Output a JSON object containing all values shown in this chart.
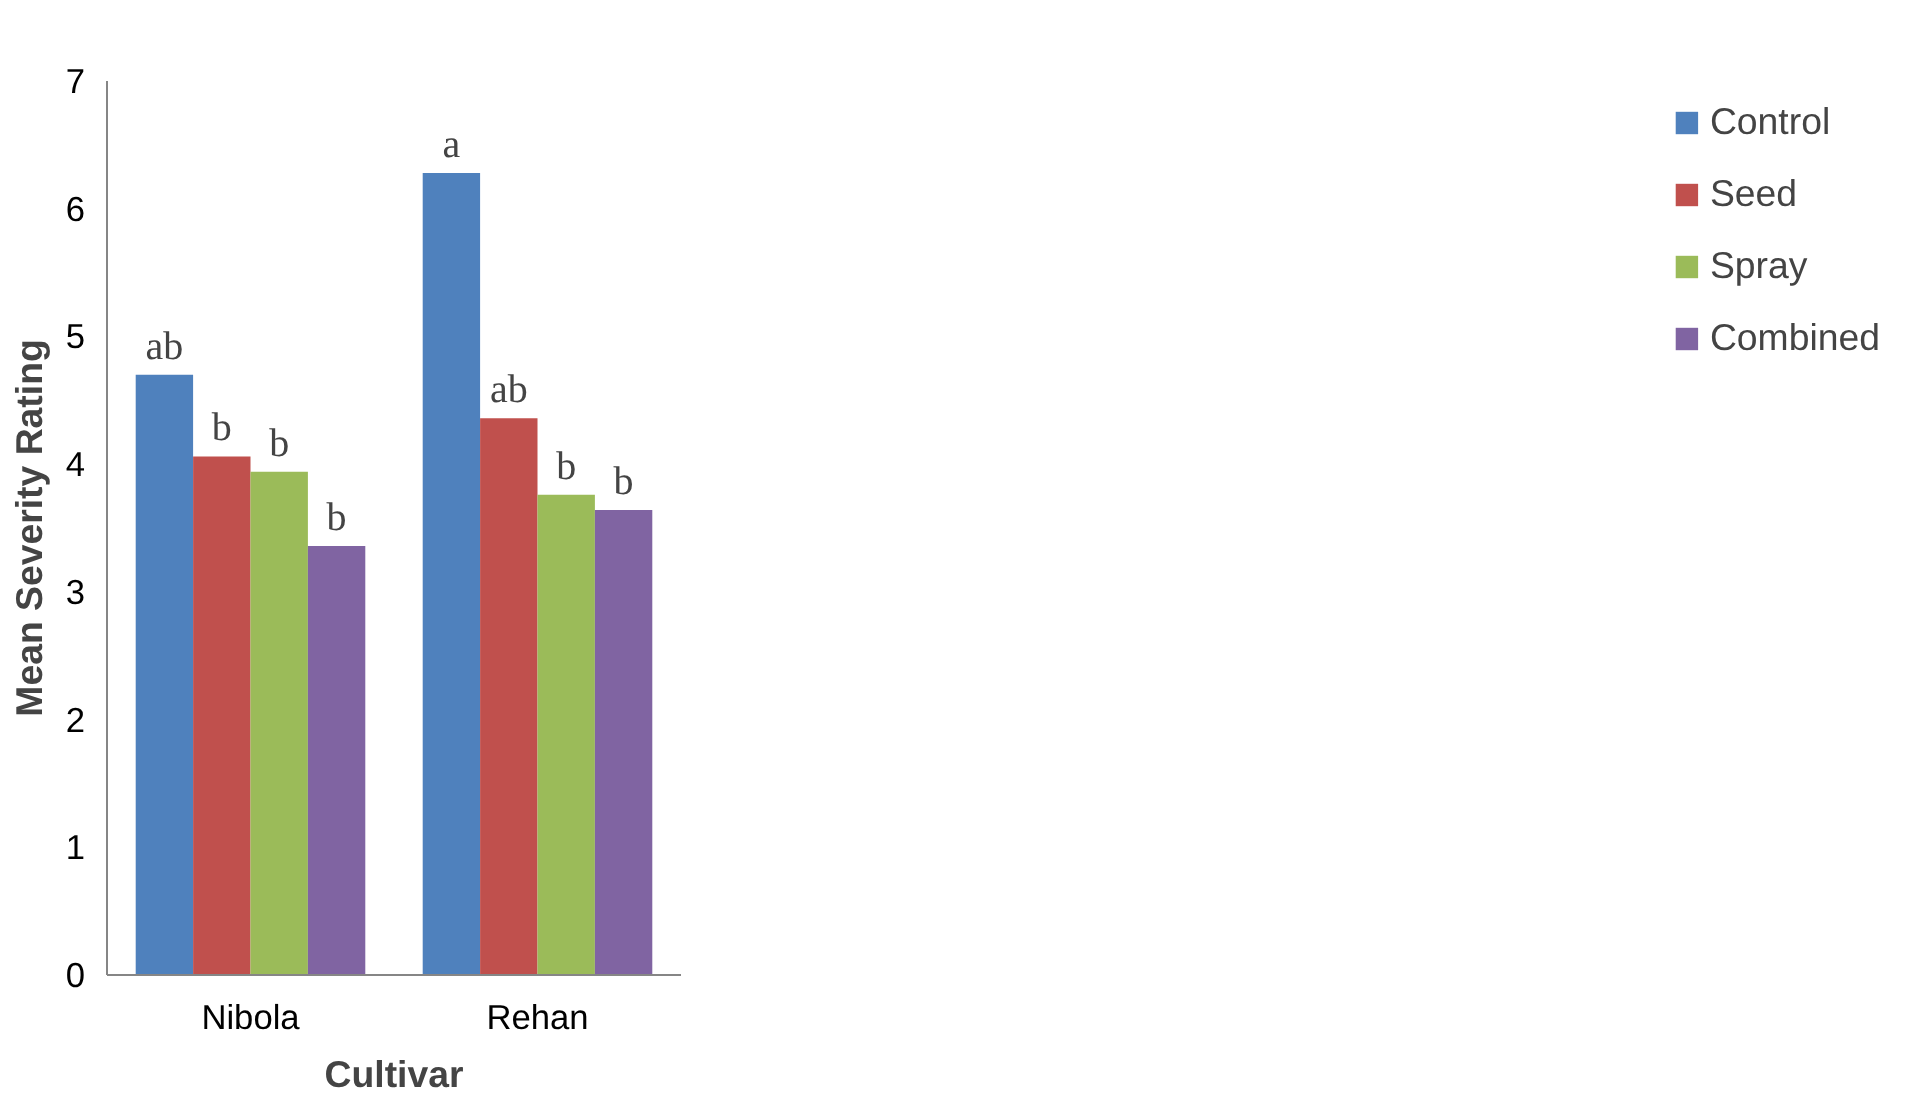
{
  "chart_data": {
    "type": "bar",
    "xlabel": "Cultivar",
    "ylabel": "Mean Severity Rating",
    "categories": [
      "Nibola",
      "Rehan"
    ],
    "series": [
      {
        "name": "Control",
        "color": "#4f81bd",
        "values": [
          4.7,
          6.28
        ],
        "value_labels": [
          "ab",
          "a"
        ]
      },
      {
        "name": "Seed",
        "color": "#c0504d",
        "values": [
          4.06,
          4.36
        ],
        "value_labels": [
          "b",
          "ab"
        ]
      },
      {
        "name": "Spray",
        "color": "#9bbb59",
        "values": [
          3.94,
          3.76
        ],
        "value_labels": [
          "b",
          "b"
        ]
      },
      {
        "name": "Combined",
        "color": "#8064a2",
        "values": [
          3.36,
          3.64
        ],
        "value_labels": [
          "b",
          "b"
        ]
      }
    ],
    "ylim": [
      0,
      7
    ],
    "yticks": [
      0,
      1,
      2,
      3,
      4,
      5,
      6,
      7
    ],
    "grid": false,
    "legend": "right"
  }
}
